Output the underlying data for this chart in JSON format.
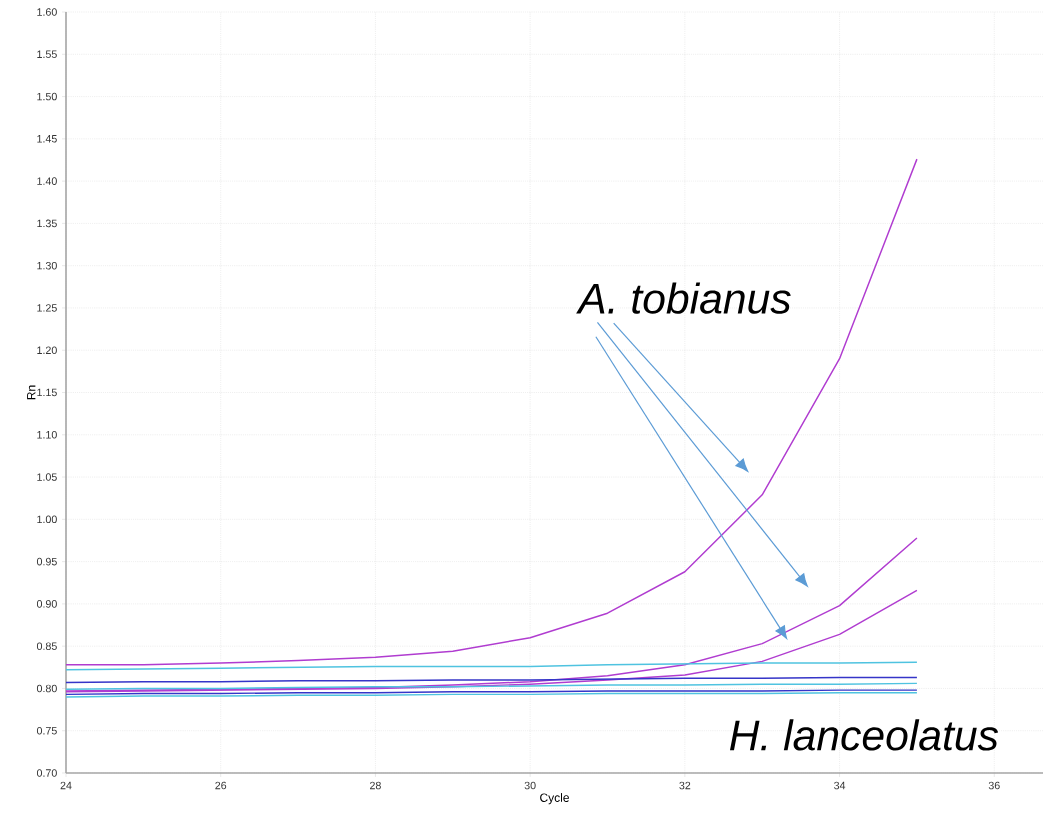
{
  "chart_data": {
    "type": "line",
    "xlabel": "Cycle",
    "ylabel": "Rn",
    "x": [
      24,
      25,
      26,
      27,
      28,
      29,
      30,
      31,
      32,
      33,
      34,
      35
    ],
    "series": [
      {
        "color": "#b03cd0",
        "values": [
          0.828,
          0.828,
          0.83,
          0.833,
          0.837,
          0.844,
          0.86,
          0.889,
          0.938,
          1.029,
          1.19,
          1.426
        ]
      },
      {
        "color": "#b03cd0",
        "values": [
          0.797,
          0.798,
          0.799,
          0.8,
          0.801,
          0.804,
          0.808,
          0.815,
          0.828,
          0.853,
          0.898,
          0.978
        ]
      },
      {
        "color": "#b03cd0",
        "values": [
          0.796,
          0.797,
          0.798,
          0.799,
          0.8,
          0.802,
          0.805,
          0.81,
          0.816,
          0.832,
          0.864,
          0.916
        ]
      },
      {
        "color": "#4fc3e0",
        "values": [
          0.822,
          0.823,
          0.824,
          0.825,
          0.826,
          0.826,
          0.826,
          0.828,
          0.829,
          0.83,
          0.83,
          0.831
        ]
      },
      {
        "color": "#3535c8",
        "values": [
          0.807,
          0.808,
          0.808,
          0.809,
          0.809,
          0.81,
          0.81,
          0.811,
          0.812,
          0.812,
          0.813,
          0.813
        ]
      },
      {
        "color": "#4fc3e0",
        "values": [
          0.799,
          0.8,
          0.8,
          0.801,
          0.802,
          0.802,
          0.803,
          0.804,
          0.804,
          0.805,
          0.805,
          0.806
        ]
      },
      {
        "color": "#3535c8",
        "values": [
          0.793,
          0.794,
          0.794,
          0.795,
          0.795,
          0.796,
          0.796,
          0.797,
          0.797,
          0.797,
          0.798,
          0.798
        ]
      },
      {
        "color": "#4fc3e0",
        "values": [
          0.79,
          0.791,
          0.791,
          0.792,
          0.792,
          0.793,
          0.793,
          0.794,
          0.794,
          0.794,
          0.795,
          0.795
        ]
      }
    ],
    "xlim": [
      24,
      36.63
    ],
    "ylim": [
      0.7,
      1.6
    ],
    "xticks": [
      24,
      26,
      28,
      30,
      32,
      34,
      36
    ],
    "yticks": [
      {
        "value": 0.7,
        "label": "0.70"
      },
      {
        "value": 0.75,
        "label": "0.75"
      },
      {
        "value": 0.8,
        "label": "0.80"
      },
      {
        "value": 0.85,
        "label": "0.85"
      },
      {
        "value": 0.9,
        "label": "0.90"
      },
      {
        "value": 0.95,
        "label": "0.95"
      },
      {
        "value": 1.0,
        "label": "1.00"
      },
      {
        "value": 1.05,
        "label": "1.05"
      },
      {
        "value": 1.1,
        "label": "1.10"
      },
      {
        "value": 1.15,
        "label": "1.15"
      },
      {
        "value": 1.2,
        "label": "1.20"
      },
      {
        "value": 1.25,
        "label": "1.25"
      },
      {
        "value": 1.3,
        "label": "1.30"
      },
      {
        "value": 1.35,
        "label": "1.35"
      },
      {
        "value": 1.4,
        "label": "1.40"
      },
      {
        "value": 1.45,
        "label": "1.45"
      },
      {
        "value": 1.5,
        "label": "1.50"
      },
      {
        "value": 1.55,
        "label": "1.55"
      },
      {
        "value": 1.6,
        "label": "1.60"
      }
    ],
    "grid": true,
    "annotations": [
      "A. tobianus",
      "H. lanceolatus"
    ]
  }
}
